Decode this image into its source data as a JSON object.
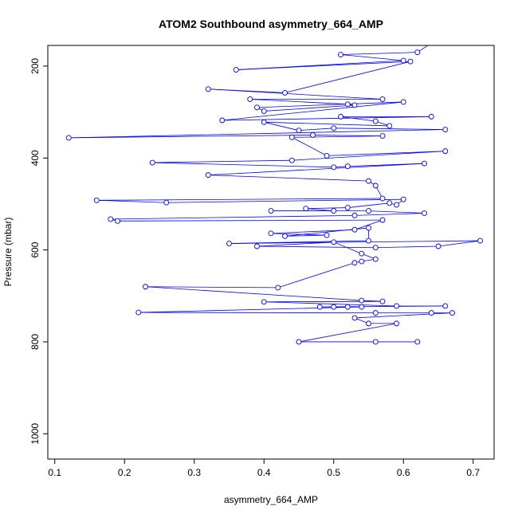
{
  "chart_data": {
    "type": "line",
    "title": "ATOM2 Southbound asymmetry_664_AMP",
    "xlabel": "asymmetry_664_AMP",
    "ylabel": "Pressure (mbar)",
    "xlim": [
      0.09,
      0.73
    ],
    "ylim": [
      1055,
      155
    ],
    "y_reversed": true,
    "grid": false,
    "x_ticks": [
      0.1,
      0.2,
      0.3,
      0.4,
      0.5,
      0.6,
      0.7
    ],
    "x_tick_labels": [
      "0.1",
      "0.2",
      "0.3",
      "0.4",
      "0.5",
      "0.6",
      "0.7"
    ],
    "y_ticks": [
      200,
      400,
      600,
      800,
      1000
    ],
    "y_tick_labels": [
      "200",
      "400",
      "600",
      "800",
      "1000"
    ],
    "series": [
      {
        "color": "#0000ff",
        "marker": "open-circle",
        "points": [
          [
            0.69,
            100
          ],
          [
            0.62,
            170
          ],
          [
            0.51,
            175
          ],
          [
            0.6,
            188
          ],
          [
            0.36,
            208
          ],
          [
            0.61,
            190
          ],
          [
            0.43,
            258
          ],
          [
            0.32,
            250
          ],
          [
            0.57,
            272
          ],
          [
            0.38,
            272
          ],
          [
            0.52,
            283
          ],
          [
            0.53,
            285
          ],
          [
            0.4,
            298
          ],
          [
            0.39,
            290
          ],
          [
            0.6,
            278
          ],
          [
            0.34,
            318
          ],
          [
            0.64,
            310
          ],
          [
            0.51,
            310
          ],
          [
            0.56,
            320
          ],
          [
            0.58,
            330
          ],
          [
            0.4,
            322
          ],
          [
            0.45,
            340
          ],
          [
            0.5,
            335
          ],
          [
            0.66,
            338
          ],
          [
            0.12,
            356
          ],
          [
            0.47,
            350
          ],
          [
            0.57,
            352
          ],
          [
            0.44,
            355
          ],
          [
            0.49,
            395
          ],
          [
            0.66,
            385
          ],
          [
            0.44,
            405
          ],
          [
            0.24,
            410
          ],
          [
            0.5,
            420
          ],
          [
            0.52,
            418
          ],
          [
            0.63,
            412
          ],
          [
            0.32,
            437
          ],
          [
            0.55,
            450
          ],
          [
            0.56,
            460
          ],
          [
            0.57,
            488
          ],
          [
            0.16,
            492
          ],
          [
            0.26,
            497
          ],
          [
            0.6,
            490
          ],
          [
            0.59,
            502
          ],
          [
            0.58,
            498
          ],
          [
            0.52,
            508
          ],
          [
            0.46,
            510
          ],
          [
            0.5,
            515
          ],
          [
            0.41,
            515
          ],
          [
            0.55,
            515
          ],
          [
            0.63,
            520
          ],
          [
            0.53,
            525
          ],
          [
            0.18,
            533
          ],
          [
            0.19,
            537
          ],
          [
            0.57,
            535
          ],
          [
            0.53,
            556
          ],
          [
            0.41,
            564
          ],
          [
            0.49,
            568
          ],
          [
            0.43,
            570
          ],
          [
            0.55,
            552
          ],
          [
            0.55,
            580
          ],
          [
            0.35,
            586
          ],
          [
            0.71,
            580
          ],
          [
            0.65,
            592
          ],
          [
            0.56,
            595
          ],
          [
            0.39,
            592
          ],
          [
            0.5,
            583
          ],
          [
            0.54,
            608
          ],
          [
            0.56,
            620
          ],
          [
            0.54,
            625
          ],
          [
            0.53,
            628
          ],
          [
            0.42,
            682
          ],
          [
            0.23,
            680
          ],
          [
            0.54,
            710
          ],
          [
            0.57,
            712
          ],
          [
            0.4,
            713
          ],
          [
            0.59,
            722
          ],
          [
            0.66,
            722
          ],
          [
            0.48,
            724
          ],
          [
            0.52,
            724
          ],
          [
            0.5,
            724
          ],
          [
            0.54,
            724
          ],
          [
            0.22,
            736
          ],
          [
            0.56,
            737
          ],
          [
            0.64,
            737
          ],
          [
            0.67,
            737
          ],
          [
            0.53,
            748
          ],
          [
            0.55,
            760
          ],
          [
            0.59,
            760
          ],
          [
            0.45,
            800
          ],
          [
            0.56,
            800
          ],
          [
            0.62,
            800
          ]
        ]
      }
    ]
  }
}
